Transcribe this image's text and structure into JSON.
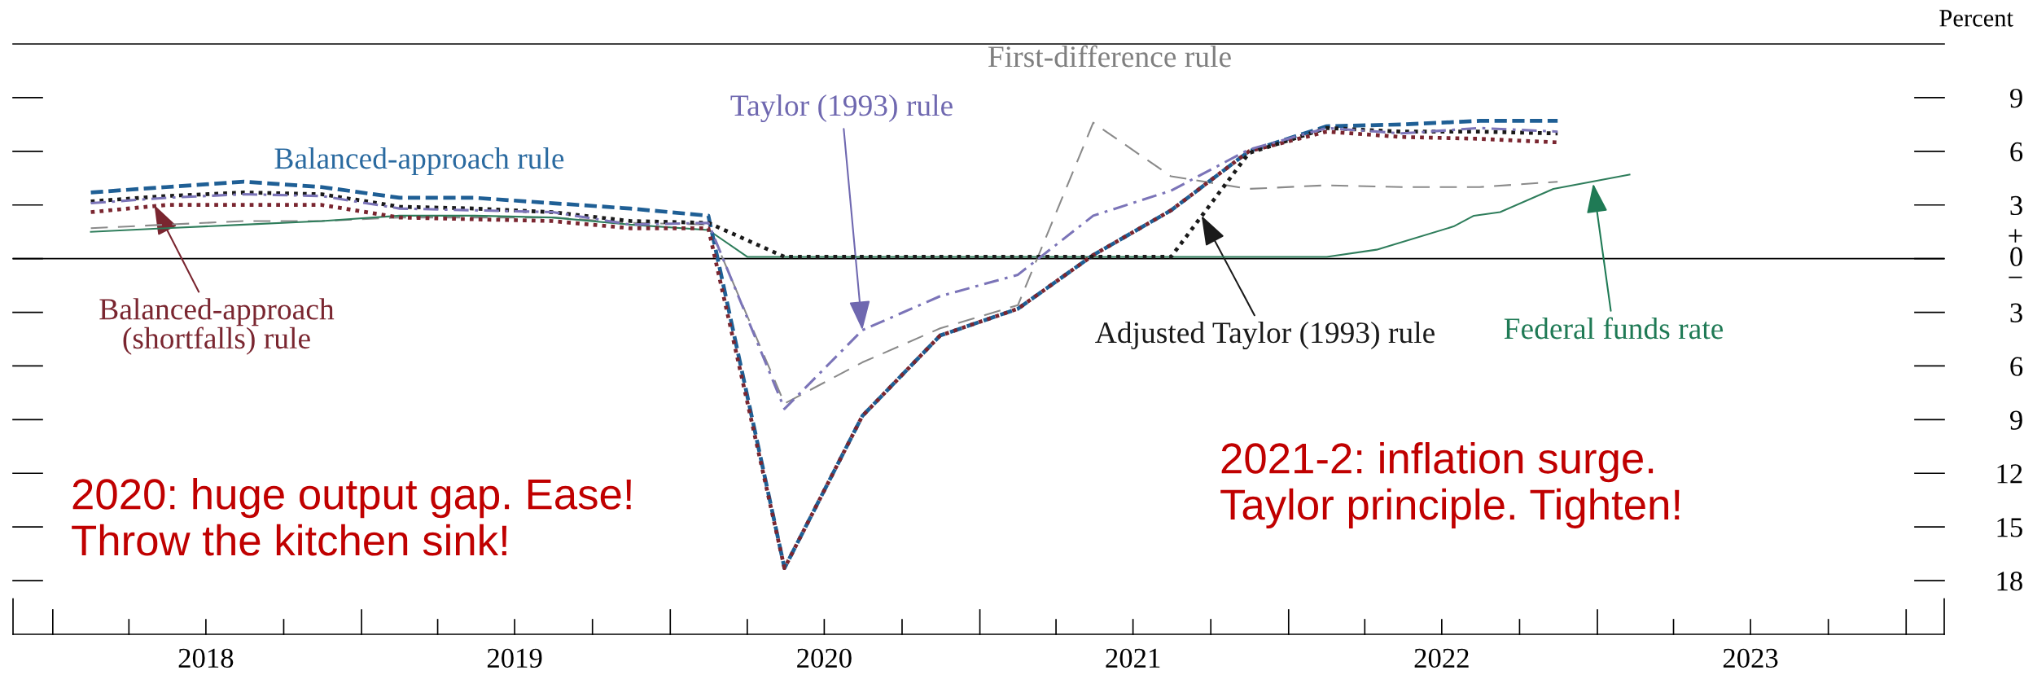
{
  "chart_data": {
    "type": "line",
    "ylabel": "Percent",
    "x": [
      "2018-02-15",
      "2018-05-15",
      "2018-08-15",
      "2018-11-15",
      "2019-02-15",
      "2019-05-15",
      "2019-08-15",
      "2019-11-15",
      "2020-02-15",
      "2020-05-15",
      "2020-08-15",
      "2020-11-15",
      "2021-02-15",
      "2021-05-15",
      "2021-08-15",
      "2021-11-15",
      "2022-02-15",
      "2022-05-15",
      "2022-08-15",
      "2022-11-15"
    ],
    "series": [
      {
        "color": "#1f5f95",
        "line_style": "dashed",
        "values": [
          3.7,
          4.0,
          4.3,
          4.0,
          3.4,
          3.4,
          3.1,
          2.8,
          2.4,
          -17.3,
          -8.8,
          -4.3,
          -2.8,
          0.2,
          2.7,
          6.0,
          7.4,
          7.5,
          7.7,
          7.7
        ]
      },
      {
        "color": "#7a2630",
        "line_style": "dotted",
        "values": [
          2.6,
          3.0,
          3.0,
          3.0,
          2.3,
          2.2,
          2.1,
          1.7,
          1.7,
          -17.3,
          -8.8,
          -4.3,
          -2.8,
          0.2,
          2.7,
          6.0,
          7.1,
          6.8,
          6.7,
          6.5
        ]
      },
      {
        "color": "#1a1a1a",
        "line_style": "dotted",
        "values": [
          3.2,
          3.5,
          3.7,
          3.6,
          2.9,
          2.8,
          2.6,
          2.1,
          2.0,
          0.1,
          0.1,
          0.1,
          0.1,
          0.1,
          0.1,
          5.9,
          7.3,
          7.1,
          7.1,
          7.0
        ]
      },
      {
        "color": "#7b74b8",
        "line_style": "dashdot",
        "values": [
          3.1,
          3.4,
          3.6,
          3.5,
          2.8,
          2.7,
          2.6,
          1.9,
          2.0,
          -8.4,
          -4.0,
          -2.1,
          -0.9,
          2.4,
          3.8,
          6.1,
          7.3,
          7.0,
          7.3,
          7.1
        ]
      },
      {
        "color": "#8a8a8a",
        "line_style": "dashed",
        "values": [
          1.7,
          1.9,
          2.1,
          2.1,
          2.3,
          2.3,
          2.3,
          2.0,
          1.9,
          -8.1,
          -5.8,
          -3.9,
          -2.6,
          7.6,
          4.6,
          3.9,
          4.1,
          4.0,
          4.0,
          4.3
        ]
      },
      {
        "color": "#2e7d5b",
        "line_style": "solid",
        "x": [
          "2018-02-15",
          "2018-05-15",
          "2018-08-15",
          "2018-11-15",
          "2019-02-15",
          "2019-05-15",
          "2019-08-15",
          "2019-11-15",
          "2020-02-15",
          "2020-04-01",
          "2022-02-15",
          "2022-04-15",
          "2022-07-15",
          "2022-08-08",
          "2022-09-08",
          "2022-11-10",
          "2023-02-08"
        ],
        "values": [
          1.5,
          1.7,
          1.9,
          2.1,
          2.4,
          2.4,
          2.3,
          1.9,
          1.6,
          0.1,
          0.1,
          0.5,
          1.8,
          2.4,
          2.6,
          3.9,
          4.7
        ]
      }
    ],
    "annotations": [
      "Balanced-approach rule",
      {
        "text": "Balanced-approach\n(shortfalls) rule",
        "x": "2018-05-01",
        "y": 3.0
      },
      {
        "text": "Taylor (1993) rule",
        "x": "2020-08-15",
        "y": -4.0
      },
      "First-difference rule",
      {
        "text": "Adjusted Taylor (1993) rule",
        "x": "2021-09-20",
        "y": 2.4
      },
      {
        "text": "Federal funds rate",
        "x": "2022-12-27",
        "y": 4.2
      },
      "2020: huge output gap. Ease!\nThrow the kitchen sink!",
      "2021-2: inflation surge.\nTaylor principle. Tighten!"
    ],
    "ref_lines": [
      {
        "axis": "y",
        "value": 0,
        "color": "#000000"
      }
    ],
    "xlim": [
      "2017-11-15",
      "2024-02-15"
    ],
    "xticks": [
      {
        "value": "2018-07-01",
        "label": "2018"
      },
      {
        "value": "2019-07-01",
        "label": "2019"
      },
      {
        "value": "2020-07-01",
        "label": "2020"
      },
      {
        "value": "2021-07-01",
        "label": "2021"
      },
      {
        "value": "2022-07-01",
        "label": "2022"
      },
      {
        "value": "2023-07-01",
        "label": "2023"
      }
    ],
    "ylim": [
      -21,
      12
    ],
    "yticks": [
      9,
      6,
      3,
      {
        "value": 0,
        "label": "+\n0\n−"
      },
      {
        "value": -3,
        "label": "3"
      },
      {
        "value": -6,
        "label": "6"
      },
      {
        "value": -9,
        "label": "9"
      },
      {
        "value": -12,
        "label": "12"
      },
      {
        "value": -15,
        "label": "15"
      },
      {
        "value": -18,
        "label": "18"
      }
    ],
    "tick_labels": "xy",
    "grid": false,
    "legend": false
  }
}
